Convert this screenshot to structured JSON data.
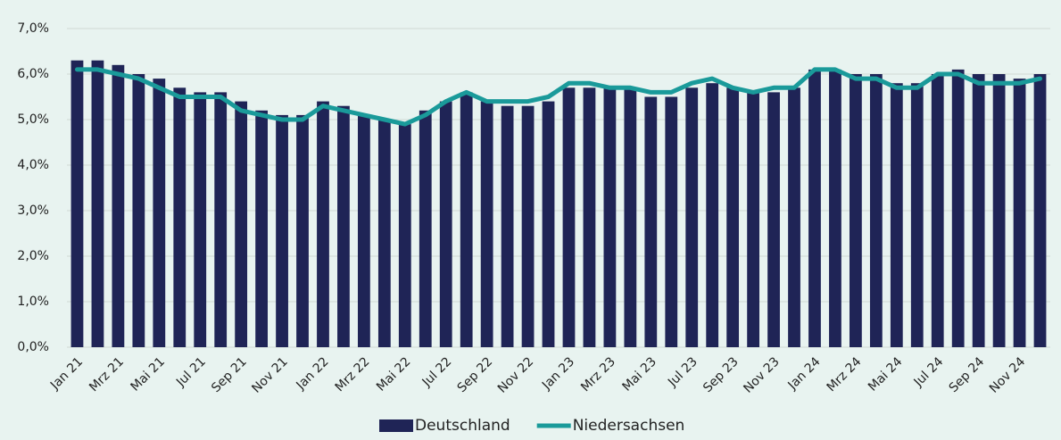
{
  "chart_data": {
    "type": "bar_line",
    "categories": [
      "Jan 21",
      null,
      "Mrz 21",
      null,
      "Mai 21",
      null,
      "Jul 21",
      null,
      "Sep 21",
      null,
      "Nov 21",
      null,
      "Jan 22",
      null,
      "Mrz 22",
      null,
      "Mai 22",
      null,
      "Jul 22",
      null,
      "Sep 22",
      null,
      "Nov 22",
      null,
      "Jan 23",
      null,
      "Mrz 23",
      null,
      "Mai 23",
      null,
      "Jul 23",
      null,
      "Sep 23",
      null,
      "Nov 23",
      null,
      "Jan 24",
      null,
      "Mrz 24",
      null,
      "Mai 24",
      null,
      "Jul 24",
      null,
      "Sep 24",
      null,
      "Nov 24",
      null
    ],
    "series": [
      {
        "name": "Deutschland",
        "type": "bar",
        "color": "#1f2456",
        "values": [
          6.3,
          6.3,
          6.2,
          6.0,
          5.9,
          5.7,
          5.6,
          5.6,
          5.4,
          5.2,
          5.1,
          5.1,
          5.4,
          5.3,
          5.1,
          5.0,
          4.9,
          5.2,
          5.4,
          5.6,
          5.4,
          5.3,
          5.3,
          5.4,
          5.7,
          5.7,
          5.7,
          5.7,
          5.5,
          5.5,
          5.7,
          5.8,
          5.7,
          5.6,
          5.6,
          5.7,
          6.1,
          6.1,
          6.0,
          6.0,
          5.8,
          5.8,
          6.0,
          6.1,
          6.0,
          6.0,
          5.9,
          6.0
        ]
      },
      {
        "name": "Niedersachsen",
        "type": "line",
        "color": "#1a9a9a",
        "values": [
          6.1,
          6.1,
          6.0,
          5.9,
          5.7,
          5.5,
          5.5,
          5.5,
          5.2,
          5.1,
          5.0,
          5.0,
          5.3,
          5.2,
          5.1,
          5.0,
          4.9,
          5.1,
          5.4,
          5.6,
          5.4,
          5.4,
          5.4,
          5.5,
          5.8,
          5.8,
          5.7,
          5.7,
          5.6,
          5.6,
          5.8,
          5.9,
          5.7,
          5.6,
          5.7,
          5.7,
          6.1,
          6.1,
          5.9,
          5.9,
          5.7,
          5.7,
          6.0,
          6.0,
          5.8,
          5.8,
          5.8,
          5.9
        ]
      }
    ],
    "ylim": [
      0,
      7
    ],
    "yticks": [
      {
        "value": 0,
        "label": "0,0%"
      },
      {
        "value": 1,
        "label": "1,0%"
      },
      {
        "value": 2,
        "label": "2,0%"
      },
      {
        "value": 3,
        "label": "3,0%"
      },
      {
        "value": 4,
        "label": "4,0%"
      },
      {
        "value": 5,
        "label": "5,0%"
      },
      {
        "value": 6,
        "label": "6,0%"
      },
      {
        "value": 7,
        "label": "7,0%"
      }
    ],
    "grid": true,
    "legend": "bottom"
  }
}
